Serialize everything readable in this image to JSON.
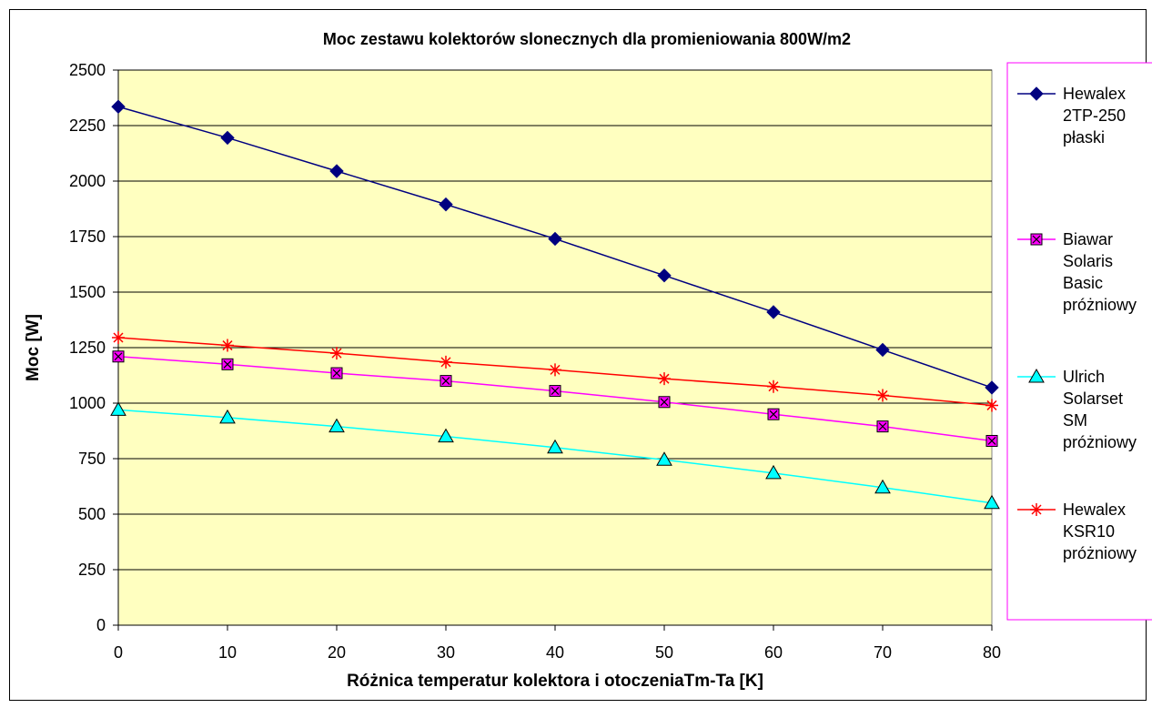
{
  "chart_data": {
    "type": "line",
    "title": "Moc zestawu kolektorów slonecznych dla promieniowania 800W/m2",
    "xlabel": "Różnica temperatur kolektora i otoczeniaTm-Ta [K]",
    "ylabel": "Moc [W]",
    "x": [
      0,
      10,
      20,
      30,
      40,
      50,
      60,
      70,
      80
    ],
    "xlim": [
      0,
      80
    ],
    "ylim": [
      0,
      2500
    ],
    "xticks": [
      0,
      10,
      20,
      30,
      40,
      50,
      60,
      70,
      80
    ],
    "yticks": [
      0,
      250,
      500,
      750,
      1000,
      1250,
      1500,
      1750,
      2000,
      2250,
      2500
    ],
    "grid": "horizontal",
    "plot_background": "#FFFFC0",
    "legend_placement": "right",
    "legend_border_color": "#FF00FF",
    "series": [
      {
        "name_lines": [
          "Hewalex",
          "2TP-250",
          "płaski"
        ],
        "color": "#000080",
        "marker": "diamond",
        "marker_fill": "#000080",
        "values": [
          2335,
          2195,
          2045,
          1895,
          1740,
          1575,
          1410,
          1240,
          1070
        ]
      },
      {
        "name_lines": [
          "Biawar",
          "Solaris",
          "Basic",
          "próżniowy"
        ],
        "color": "#FF00FF",
        "marker": "square-x",
        "marker_fill": "#FF00FF",
        "values": [
          1210,
          1175,
          1135,
          1100,
          1055,
          1005,
          950,
          895,
          830
        ]
      },
      {
        "name_lines": [
          "Ulrich",
          "Solarset",
          "SM",
          "próżniowy"
        ],
        "color": "#00FFFF",
        "marker": "triangle",
        "marker_fill": "#00FFFF",
        "values": [
          970,
          935,
          895,
          850,
          800,
          745,
          685,
          620,
          550
        ]
      },
      {
        "name_lines": [
          "Hewalex",
          "KSR10",
          "próżniowy"
        ],
        "color": "#FF0000",
        "marker": "asterisk",
        "marker_fill": "none",
        "values": [
          1295,
          1260,
          1225,
          1185,
          1150,
          1110,
          1075,
          1035,
          990
        ]
      }
    ]
  }
}
